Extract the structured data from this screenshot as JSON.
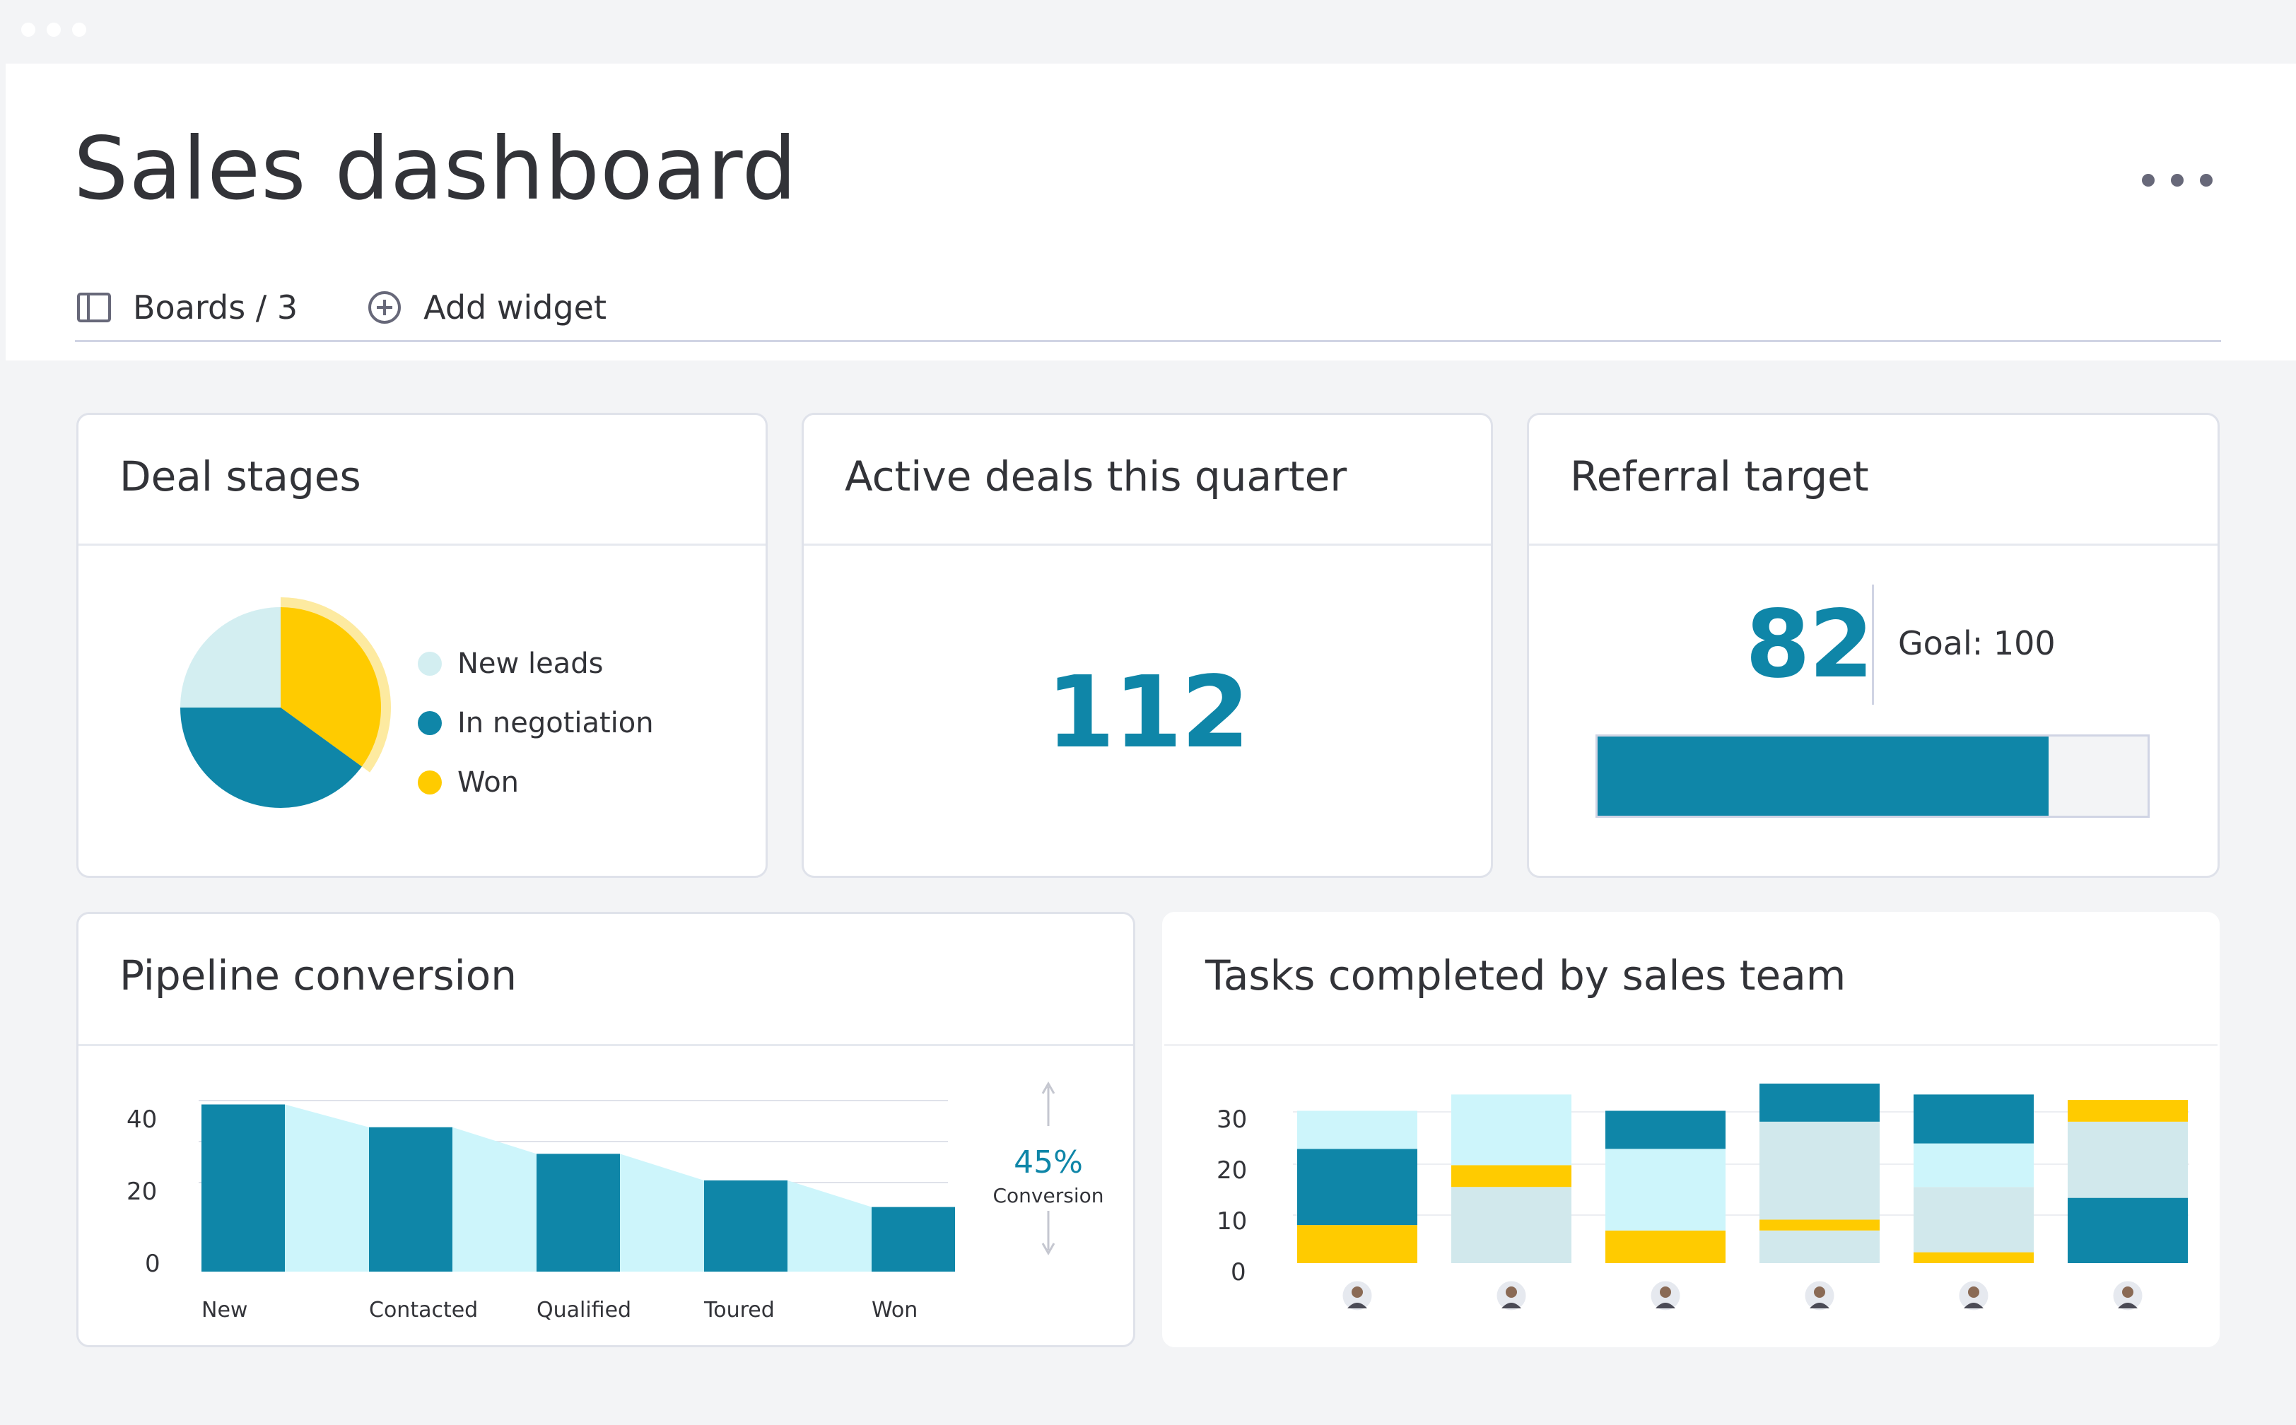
{
  "colors": {
    "teal": "#0f86a8",
    "light_cyan": "#cdf5fb",
    "pale_cyan": "#d1e8ec",
    "yellow": "#ffcb00",
    "text": "#323338"
  },
  "header": {
    "title": "Sales dashboard",
    "more_icon": "more-horizontal-icon",
    "boards_label": "Boards / 3",
    "boards_icon": "sidebar-panel-icon",
    "add_widget_label": "Add widget",
    "add_widget_icon": "plus-circle-icon"
  },
  "deal_stages": {
    "title": "Deal stages",
    "legend": [
      {
        "label": "New leads",
        "color": "#d3eef1"
      },
      {
        "label": "In negotiation",
        "color": "#0f86a8"
      },
      {
        "label": "Won",
        "color": "#ffcb00"
      }
    ],
    "chart_data": {
      "type": "pie",
      "labels": [
        "New leads",
        "In negotiation",
        "Won"
      ],
      "values": [
        25,
        40,
        35
      ],
      "colors": [
        "#d3eef1",
        "#0f86a8",
        "#ffcb00"
      ]
    }
  },
  "active_deals": {
    "title": "Active deals this quarter",
    "value": "112"
  },
  "referral_target": {
    "title": "Referral target",
    "value": "82",
    "goal_label": "Goal: 100",
    "progress": 0.82
  },
  "pipeline_conversion": {
    "title": "Pipeline conversion",
    "conversion_value": "45%",
    "conversion_label": "Conversion",
    "chart_data": {
      "type": "bar",
      "categories": [
        "New",
        "Contacted",
        "Qualified",
        "Toured",
        "Won"
      ],
      "values": [
        44,
        38,
        31,
        24,
        17
      ],
      "y_ticks": [
        "0",
        "20",
        "40"
      ],
      "ylim": [
        0,
        48
      ],
      "grid": true
    }
  },
  "tasks_completed": {
    "title": "Tasks completed by sales team",
    "avatars": [
      "team-member-1",
      "team-member-2",
      "team-member-3",
      "team-member-4",
      "team-member-5",
      "team-member-6"
    ],
    "chart_data": {
      "type": "bar",
      "stacked": true,
      "categories": [
        "team-member-1",
        "team-member-2",
        "team-member-3",
        "team-member-4",
        "team-member-5",
        "team-member-6"
      ],
      "y_ticks": [
        "0",
        "10",
        "20",
        "30"
      ],
      "ylim": [
        0,
        33
      ],
      "series": [
        {
          "color": "#ffcb00",
          "values": [
            7,
            0,
            6,
            0,
            2,
            0
          ]
        },
        {
          "color": "#d1e8ec",
          "values": [
            0,
            14,
            0,
            6,
            12,
            0
          ]
        },
        {
          "color": "#0f86a8",
          "values": [
            14,
            0,
            0,
            0,
            0,
            12
          ]
        },
        {
          "color": "#cdf5fb",
          "values": [
            7,
            0,
            15,
            0,
            8,
            0
          ]
        },
        {
          "color": "#ffcb00",
          "values": [
            0,
            4,
            0,
            2,
            0,
            0
          ]
        },
        {
          "color": "#cdf5fb",
          "values": [
            0,
            13,
            0,
            0,
            0,
            0
          ]
        },
        {
          "color": "#d1e8ec",
          "values": [
            0,
            0,
            0,
            18,
            0,
            14
          ]
        },
        {
          "color": "#0f86a8",
          "values": [
            0,
            0,
            7,
            7,
            9,
            0
          ]
        },
        {
          "color": "#ffcb00",
          "values": [
            0,
            0,
            0,
            0,
            0,
            4
          ]
        }
      ]
    }
  }
}
